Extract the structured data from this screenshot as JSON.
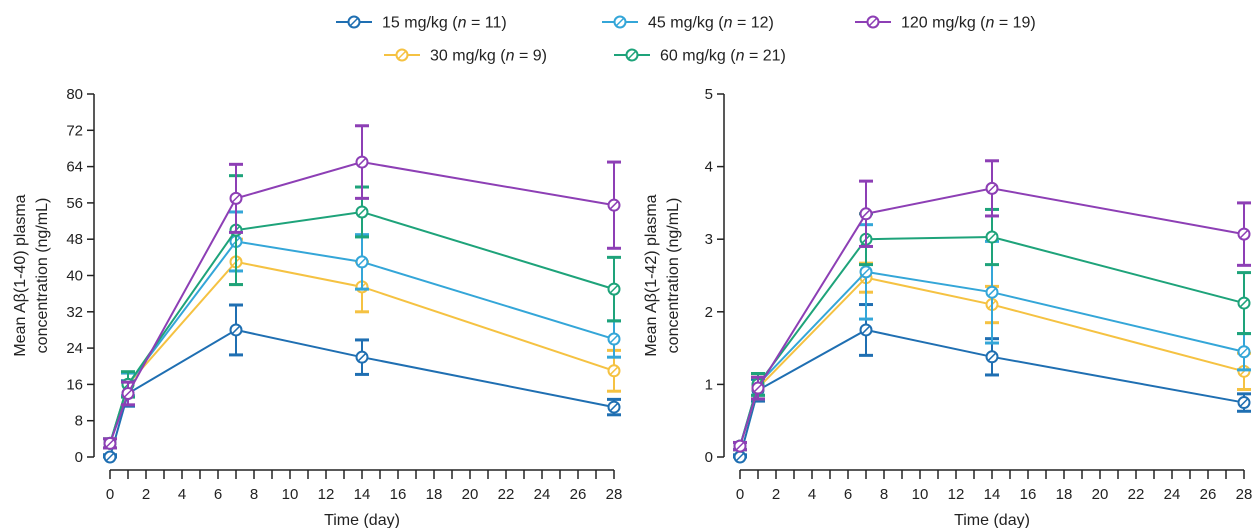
{
  "colors": {
    "15": "#1f6fb2",
    "30": "#f5c242",
    "45": "#34a6d8",
    "60": "#1ea37a",
    "120": "#8d3fb5",
    "axis": "#222222"
  },
  "legend": [
    {
      "key": "15",
      "prefix": "15 mg/kg (",
      "n": "n",
      "suffix": " = 11)"
    },
    {
      "key": "30",
      "prefix": "30 mg/kg (",
      "n": "n",
      "suffix": " = 9)"
    },
    {
      "key": "45",
      "prefix": "45 mg/kg (",
      "n": "n",
      "suffix": " = 12)"
    },
    {
      "key": "60",
      "prefix": "60 mg/kg (",
      "n": "n",
      "suffix": " = 21)"
    },
    {
      "key": "120",
      "prefix": "120 mg/kg (",
      "n": "n",
      "suffix": " = 19)"
    }
  ],
  "chart_data": [
    {
      "type": "line",
      "xlabel": "Time (day)",
      "ylabel_line1": "Mean Aβ(1-40) plasma",
      "ylabel_line2": "concentration (ng/mL)",
      "xlim": [
        0,
        28
      ],
      "ylim": [
        0,
        80
      ],
      "xticks": [
        0,
        2,
        4,
        6,
        8,
        10,
        12,
        14,
        16,
        18,
        20,
        22,
        24,
        26,
        28
      ],
      "yticks": [
        0,
        8,
        16,
        24,
        32,
        40,
        48,
        56,
        64,
        72,
        80
      ],
      "x": [
        0,
        1,
        7,
        14,
        28
      ],
      "series": [
        {
          "key": "15",
          "values": [
            0,
            14,
            28,
            22,
            11
          ],
          "err": [
            0.5,
            2.8,
            5.5,
            3.8,
            1.7
          ]
        },
        {
          "key": "30",
          "values": [
            3,
            16,
            43,
            37.5,
            19
          ],
          "err": [
            1.0,
            2.5,
            5.0,
            5.5,
            4.5
          ]
        },
        {
          "key": "45",
          "values": [
            3,
            16,
            47.5,
            43,
            26
          ],
          "err": [
            1.0,
            2.5,
            6.5,
            6.0,
            4.0
          ]
        },
        {
          "key": "60",
          "values": [
            3,
            16,
            50,
            54,
            37
          ],
          "err": [
            1.0,
            2.8,
            12,
            5.5,
            7.0
          ]
        },
        {
          "key": "120",
          "values": [
            3,
            14,
            57,
            65,
            55.5
          ],
          "err": [
            1.0,
            2.5,
            7.5,
            8.0,
            9.5
          ]
        }
      ]
    },
    {
      "type": "line",
      "xlabel": "Time (day)",
      "ylabel_line1": "Mean Aβ(1-42) plasma",
      "ylabel_line2": "concentration (ng/mL)",
      "xlim": [
        0,
        28
      ],
      "ylim": [
        0,
        5
      ],
      "xticks": [
        0,
        2,
        4,
        6,
        8,
        10,
        12,
        14,
        16,
        18,
        20,
        22,
        24,
        26,
        28
      ],
      "yticks": [
        0,
        1,
        2,
        3,
        4,
        5
      ],
      "x": [
        0,
        1,
        7,
        14,
        28
      ],
      "series": [
        {
          "key": "15",
          "values": [
            0,
            0.92,
            1.75,
            1.38,
            0.75
          ],
          "err": [
            0.03,
            0.15,
            0.35,
            0.25,
            0.12
          ]
        },
        {
          "key": "30",
          "values": [
            0.15,
            0.95,
            2.47,
            2.1,
            1.18
          ],
          "err": [
            0.05,
            0.15,
            0.2,
            0.25,
            0.25
          ]
        },
        {
          "key": "45",
          "values": [
            0.15,
            1.0,
            2.55,
            2.27,
            1.45
          ],
          "err": [
            0.05,
            0.15,
            0.65,
            0.7,
            0.25
          ]
        },
        {
          "key": "60",
          "values": [
            0.15,
            1.0,
            3.0,
            3.03,
            2.12
          ],
          "err": [
            0.05,
            0.15,
            0.35,
            0.38,
            0.42
          ]
        },
        {
          "key": "120",
          "values": [
            0.15,
            0.95,
            3.35,
            3.7,
            3.07
          ],
          "err": [
            0.05,
            0.15,
            0.45,
            0.38,
            0.43
          ]
        }
      ]
    }
  ]
}
